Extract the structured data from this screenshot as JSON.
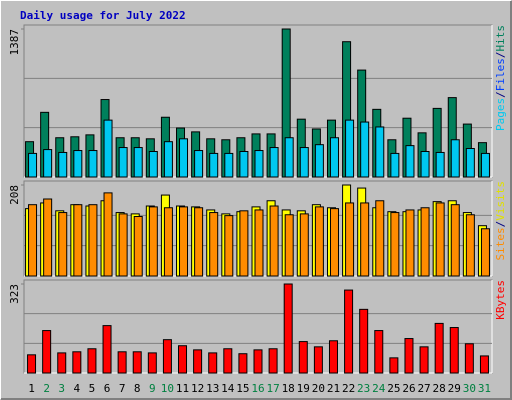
{
  "chart_data": [
    {
      "type": "bar",
      "title": "Daily usage for July 2022",
      "series": [
        {
          "name": "Hits",
          "color": "#00805c",
          "values": [
            331,
            606,
            368,
            377,
            395,
            726,
            368,
            368,
            358,
            560,
            459,
            423,
            358,
            349,
            368,
            404,
            404,
            1387,
            542,
            450,
            533,
            1268,
            1002,
            634,
            349,
            551,
            414,
            643,
            744,
            496,
            322
          ]
        },
        {
          "name": "Pages",
          "color": "#00c8f0",
          "values": [
            221,
            257,
            230,
            248,
            248,
            533,
            276,
            276,
            239,
            331,
            358,
            248,
            221,
            221,
            239,
            248,
            276,
            368,
            276,
            303,
            368,
            533,
            515,
            469,
            221,
            294,
            239,
            230,
            349,
            267,
            221
          ]
        }
      ],
      "legend": [
        {
          "text": "Pages",
          "color": "#00c8f0"
        },
        {
          "text": "Files",
          "color": "#0040ff"
        },
        {
          "text": "Hits",
          "color": "#00805c"
        }
      ],
      "legend_separator": "/",
      "ylim": [
        0,
        1387
      ],
      "yticks": [
        1387
      ]
    },
    {
      "type": "bar",
      "series": [
        {
          "name": "Visits",
          "color": "#ffff00",
          "values": [
            154,
            167,
            149,
            163,
            160,
            172,
            145,
            142,
            160,
            185,
            160,
            158,
            151,
            142,
            147,
            158,
            172,
            151,
            149,
            163,
            156,
            208,
            201,
            156,
            147,
            147,
            151,
            170,
            172,
            145,
            115
          ]
        },
        {
          "name": "Sites",
          "color": "#ff8c00",
          "values": [
            163,
            176,
            145,
            163,
            163,
            190,
            142,
            136,
            158,
            156,
            158,
            156,
            145,
            138,
            149,
            151,
            160,
            140,
            142,
            158,
            154,
            167,
            167,
            172,
            145,
            151,
            156,
            167,
            163,
            140,
            108
          ]
        }
      ],
      "legend": [
        {
          "text": "Sites",
          "color": "#ff8c00"
        },
        {
          "text": "Visits",
          "color": "#e0e000"
        }
      ],
      "legend_separator": "/",
      "ylim": [
        0,
        208
      ],
      "yticks": [
        208
      ]
    },
    {
      "type": "bar",
      "categories": [
        "1",
        "2",
        "3",
        "4",
        "5",
        "6",
        "7",
        "8",
        "9",
        "10",
        "11",
        "12",
        "13",
        "14",
        "15",
        "16",
        "17",
        "18",
        "19",
        "20",
        "21",
        "22",
        "23",
        "24",
        "25",
        "26",
        "27",
        "28",
        "29",
        "30",
        "31"
      ],
      "category_colors": [
        "#000000",
        "#008040",
        "#008040",
        "#000000",
        "#000000",
        "#000000",
        "#000000",
        "#000000",
        "#008040",
        "#008040",
        "#000000",
        "#000000",
        "#000000",
        "#000000",
        "#000000",
        "#008040",
        "#008040",
        "#000000",
        "#000000",
        "#000000",
        "#000000",
        "#000000",
        "#008040",
        "#008040",
        "#000000",
        "#000000",
        "#000000",
        "#000000",
        "#000000",
        "#008040",
        "#008040"
      ],
      "series": [
        {
          "name": "KBytes",
          "color": "#ff0000",
          "values": [
            66,
            154,
            73,
            77,
            88,
            172,
            77,
            77,
            73,
            121,
            99,
            84,
            73,
            88,
            70,
            84,
            88,
            323,
            114,
            95,
            117,
            301,
            231,
            154,
            55,
            125,
            95,
            180,
            165,
            106,
            62
          ]
        }
      ],
      "legend": [
        {
          "text": "KBytes",
          "color": "#ff0000"
        }
      ],
      "ylim": [
        0,
        323
      ],
      "yticks": [
        323
      ]
    }
  ]
}
